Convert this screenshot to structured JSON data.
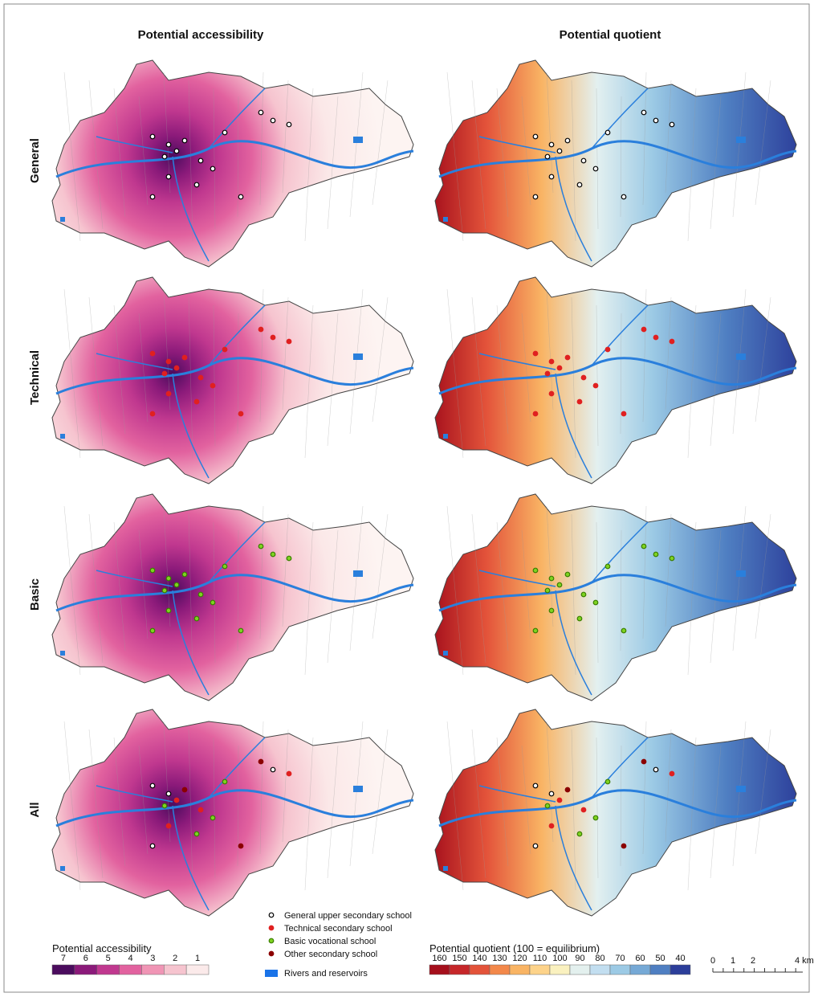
{
  "columns": [
    "Potential accessibility",
    "Potential quotient"
  ],
  "rows": [
    "General",
    "Technical",
    "Basic",
    "All"
  ],
  "legend_accessibility": {
    "title": "Potential accessibility",
    "labels": [
      7,
      6,
      5,
      4,
      3,
      2,
      1
    ]
  },
  "schools": [
    "General upper secondary school",
    "Technical secondary school",
    "Basic vocational school",
    "Other secondary school"
  ],
  "rivers": "Rivers and reservoirs",
  "legend_quotient": {
    "title": "Potential quotient (100 = equilibrium)",
    "labels": [
      160,
      150,
      140,
      130,
      120,
      110,
      100,
      90,
      80,
      70,
      60,
      50,
      40
    ]
  },
  "scale": {
    "labels": [
      "0",
      "1",
      "2",
      "4 km"
    ]
  }
}
